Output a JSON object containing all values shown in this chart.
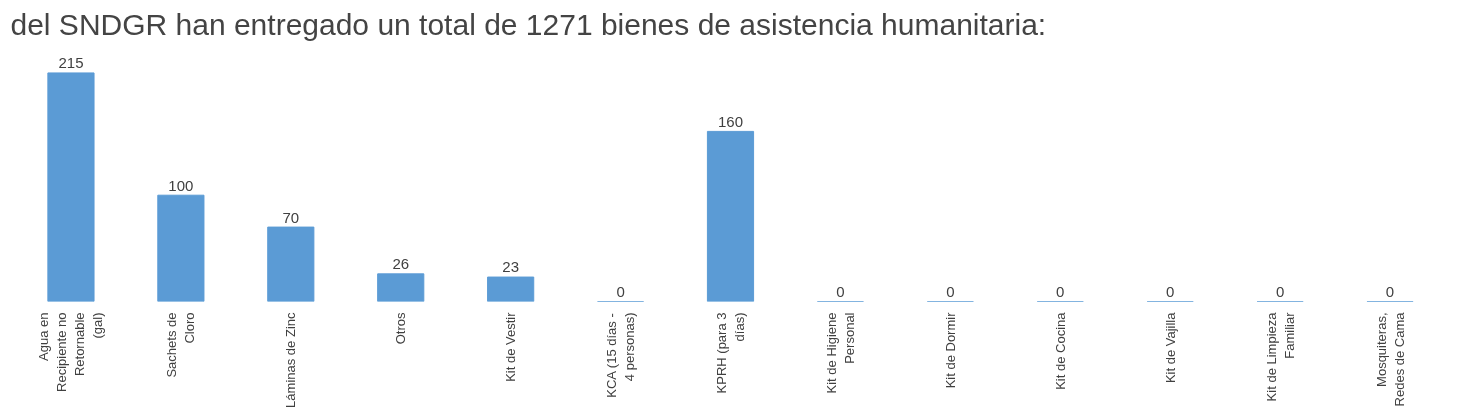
{
  "chart_data": {
    "type": "bar",
    "title": "del SNDGR han entregado un total de  1271  bienes de asistencia humanitaria:",
    "categories": [
      "Agua en Recipiente no Retornable (gal)",
      "Sachets de Cloro",
      "Láminas de Zinc",
      "Otros",
      "Kit de Vestir",
      "KCA (15 días - 4 personas)",
      "KPRH (para 3 días)",
      "Kit de Higiene Personal",
      "Kit de Dormir",
      "Kit de Cocina",
      "Kit de Vajilla",
      "Kit de Limpieza Familiar",
      "Mosquiteras, Redes de Cama"
    ],
    "values": [
      215,
      100,
      70,
      26,
      23,
      0,
      160,
      0,
      0,
      0,
      0,
      0,
      0
    ],
    "color": "#5b9bd5",
    "data_labels": true,
    "grid": false
  }
}
